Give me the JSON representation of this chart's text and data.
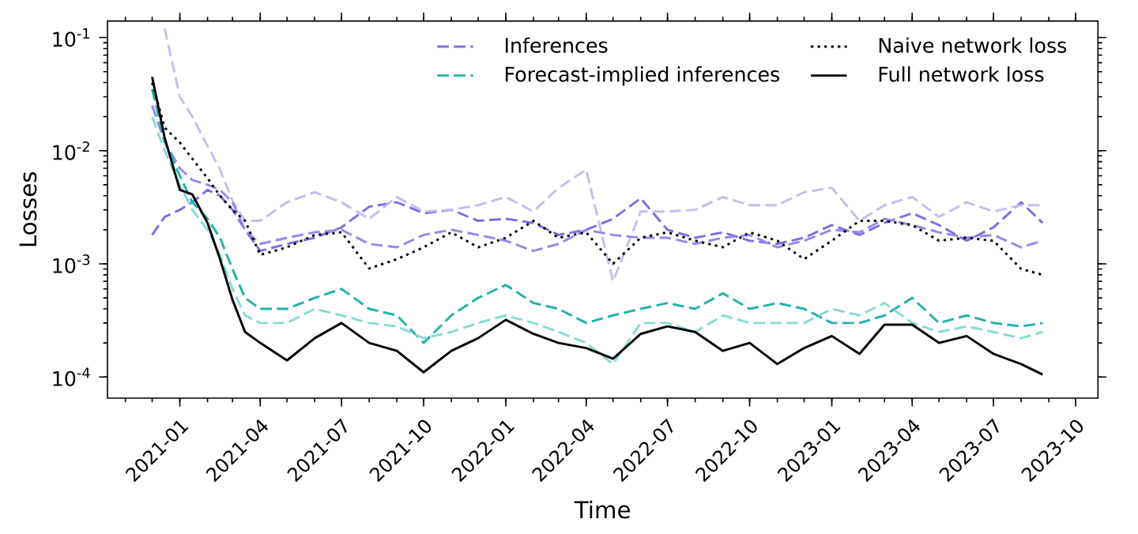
{
  "chart_data": {
    "type": "line",
    "xlabel": "Time",
    "ylabel": "Losses",
    "log": "y",
    "legend": "top right",
    "xlim": [
      "2020-10-12",
      "2023-10-26"
    ],
    "ylim": [
      6.5e-05,
      0.14
    ],
    "xticks": [
      "2021-01",
      "2021-04",
      "2021-07",
      "2021-10",
      "2022-01",
      "2022-04",
      "2022-07",
      "2022-10",
      "2023-01",
      "2023-04",
      "2023-07",
      "2023-10"
    ],
    "yticks": [
      {
        "value": 0.0001,
        "label": "10$^{-4}$"
      },
      {
        "value": 0.001,
        "label": "10$^{-3}$"
      },
      {
        "value": 0.01,
        "label": "10$^{-2}$"
      },
      {
        "value": 0.1,
        "label": "10$^{-1}$"
      }
    ],
    "x": [
      "2020-12-01",
      "2020-12-15",
      "2021-01-01",
      "2021-01-15",
      "2021-02-01",
      "2021-02-15",
      "2021-03-01",
      "2021-03-15",
      "2021-04-01",
      "2021-05-01",
      "2021-06-01",
      "2021-07-01",
      "2021-08-01",
      "2021-09-01",
      "2021-10-01",
      "2021-11-01",
      "2021-12-01",
      "2022-01-01",
      "2022-02-01",
      "2022-03-01",
      "2022-04-01",
      "2022-05-01",
      "2022-06-01",
      "2022-07-01",
      "2022-08-01",
      "2022-09-01",
      "2022-10-01",
      "2022-11-01",
      "2022-12-01",
      "2023-01-01",
      "2023-02-01",
      "2023-03-01",
      "2023-04-01",
      "2023-05-01",
      "2023-06-01",
      "2023-07-01",
      "2023-08-01",
      "2023-08-25"
    ],
    "series": [
      {
        "name": "Inferences",
        "color": "#7b6ee6",
        "line_style": "dashed",
        "values": [
          0.0018,
          0.0026,
          0.003,
          0.0035,
          0.0045,
          0.004,
          0.003,
          0.002,
          0.0013,
          0.0015,
          0.0017,
          0.0021,
          0.0032,
          0.0035,
          0.0028,
          0.003,
          0.0024,
          0.0025,
          0.0023,
          0.0018,
          0.002,
          0.0025,
          0.0038,
          0.002,
          0.0017,
          0.0019,
          0.0016,
          0.0015,
          0.0017,
          0.0022,
          0.0018,
          0.0023,
          0.0028,
          0.0022,
          0.0016,
          0.0021,
          0.0035,
          0.0023
        ]
      },
      {
        "color": "#c4bdf0",
        "line_style": "dashed",
        "values": [
          null,
          0.12,
          0.03,
          0.02,
          0.011,
          0.0068,
          0.0036,
          0.0024,
          0.0024,
          0.0035,
          0.0043,
          0.0035,
          0.0025,
          0.0039,
          0.0029,
          0.003,
          0.0033,
          0.0039,
          0.0029,
          0.0047,
          0.0068,
          0.0007,
          0.0029,
          0.0029,
          0.003,
          0.0039,
          0.0033,
          0.0033,
          0.0043,
          0.0047,
          0.0024,
          0.0033,
          0.0039,
          0.0026,
          0.0035,
          0.0029,
          0.0033,
          0.0033
        ]
      },
      {
        "color": "#9488ea",
        "line_style": "dashed",
        "values": [
          0.025,
          0.012,
          0.007,
          0.0055,
          0.005,
          0.0045,
          0.0035,
          0.002,
          0.0015,
          0.0017,
          0.0019,
          0.002,
          0.0015,
          0.0014,
          0.0018,
          0.002,
          0.0018,
          0.0016,
          0.0013,
          0.0015,
          0.002,
          0.0018,
          0.0017,
          0.0017,
          0.0015,
          0.0017,
          0.0018,
          0.0014,
          0.0016,
          0.002,
          0.0019,
          0.0025,
          0.0022,
          0.0019,
          0.0017,
          0.0018,
          0.0014,
          0.0016
        ]
      },
      {
        "name": "Forecast-implied inferences",
        "color": "#20b2aa",
        "line_style": "dashed",
        "values": [
          0.035,
          0.012,
          0.006,
          0.0035,
          0.0025,
          0.0017,
          0.0009,
          0.0005,
          0.0004,
          0.0004,
          0.0005,
          0.0006,
          0.0004,
          0.00035,
          0.0002,
          0.00035,
          0.0005,
          0.00065,
          0.00045,
          0.0004,
          0.0003,
          0.00035,
          0.0004,
          0.00045,
          0.0004,
          0.00055,
          0.0004,
          0.00045,
          0.0004,
          0.0003,
          0.0003,
          0.00035,
          0.0005,
          0.0003,
          0.00035,
          0.0003,
          0.00028,
          0.0003
        ]
      },
      {
        "color": "#86dcd4",
        "line_style": "dashed",
        "values": [
          0.02,
          0.01,
          0.005,
          0.003,
          0.002,
          0.0012,
          0.0006,
          0.00035,
          0.0003,
          0.0003,
          0.0004,
          0.00035,
          0.0003,
          0.00028,
          0.00022,
          0.00025,
          0.0003,
          0.00035,
          0.0003,
          0.00025,
          0.0002,
          0.00013,
          0.0003,
          0.0003,
          0.00025,
          0.00035,
          0.0003,
          0.0003,
          0.0003,
          0.0004,
          0.00035,
          0.00045,
          0.0003,
          0.00025,
          0.00028,
          0.00025,
          0.00022,
          0.00025
        ]
      },
      {
        "name": "Naive network loss",
        "color": "#000000",
        "line_style": "dotted",
        "values": [
          0.04,
          0.016,
          0.0118,
          0.0085,
          0.0057,
          0.004,
          0.003,
          0.0024,
          0.0012,
          0.0014,
          0.0018,
          0.0019,
          0.00091,
          0.0011,
          0.0014,
          0.0019,
          0.0014,
          0.0017,
          0.0024,
          0.0017,
          0.0019,
          0.001,
          0.0017,
          0.0019,
          0.0016,
          0.0014,
          0.0019,
          0.0016,
          0.0011,
          0.0016,
          0.0024,
          0.0024,
          0.0022,
          0.0016,
          0.0017,
          0.0016,
          0.0009,
          0.0008
        ]
      },
      {
        "name": "Full network loss",
        "color": "#000000",
        "line_style": "solid",
        "values": [
          0.045,
          0.013,
          0.0045,
          0.0041,
          0.0023,
          0.0011,
          0.00048,
          0.00025,
          0.0002,
          0.00014,
          0.00022,
          0.0003,
          0.0002,
          0.00017,
          0.00011,
          0.00017,
          0.00022,
          0.00032,
          0.00024,
          0.0002,
          0.00018,
          0.000145,
          0.00024,
          0.00028,
          0.00025,
          0.00017,
          0.0002,
          0.00013,
          0.00018,
          0.00023,
          0.00016,
          0.00029,
          0.00029,
          0.0002,
          0.00023,
          0.00016,
          0.00013,
          0.000105
        ]
      }
    ]
  }
}
